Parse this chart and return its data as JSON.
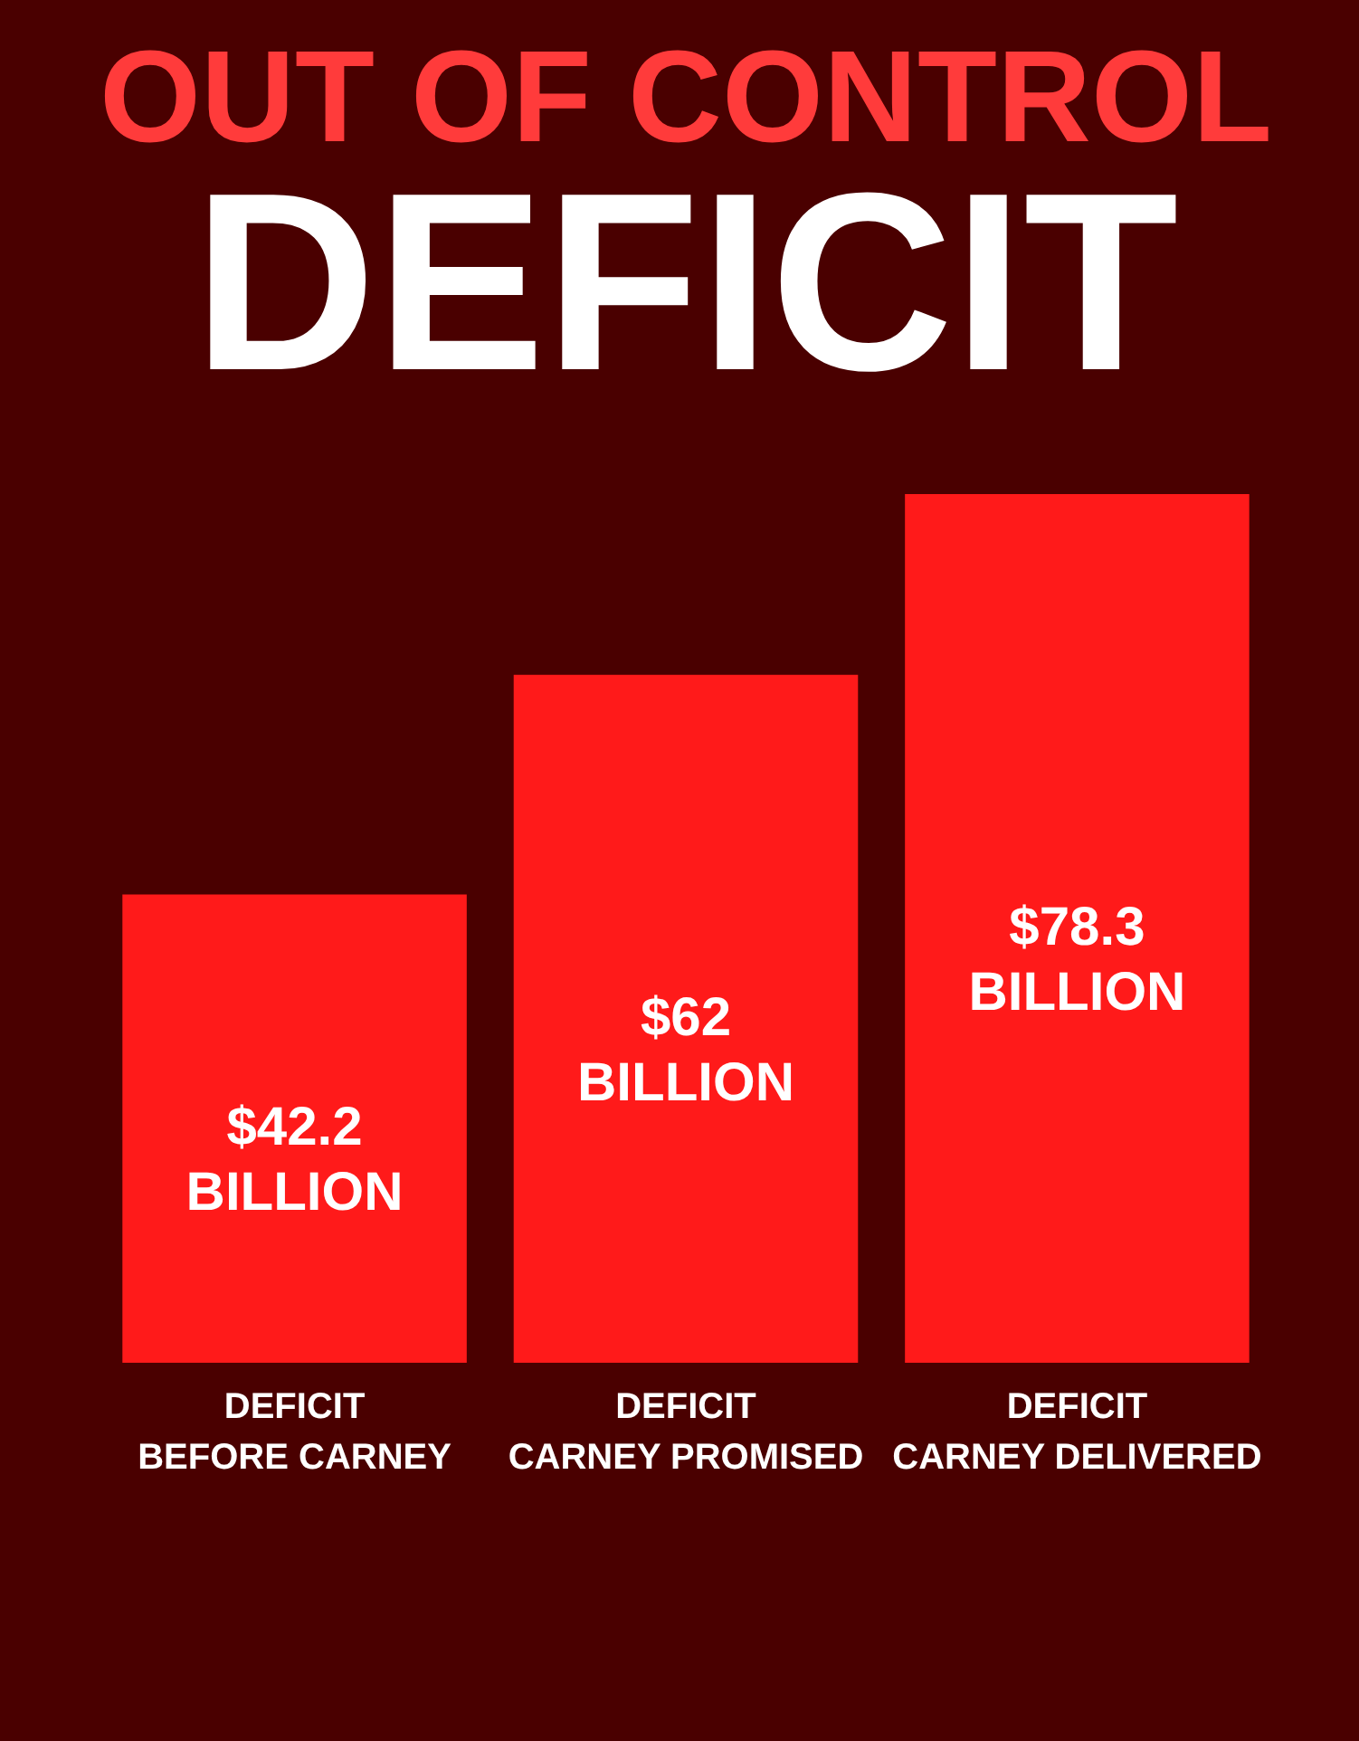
{
  "chart_data": {
    "type": "bar",
    "title": "OUT OF CONTROL",
    "subtitle": "DEFICIT",
    "categories": [
      "DEFICIT\nBEFORE CARNEY",
      "DEFICIT\nCARNEY PROMISED",
      "DEFICIT\nCARNEY DELIVERED"
    ],
    "values": [
      42.2,
      62,
      78.3
    ],
    "value_labels": [
      "$42.2\nBILLION",
      "$62\nBILLION",
      "$78.3\nBILLION"
    ],
    "color": "#ff1a1a"
  }
}
